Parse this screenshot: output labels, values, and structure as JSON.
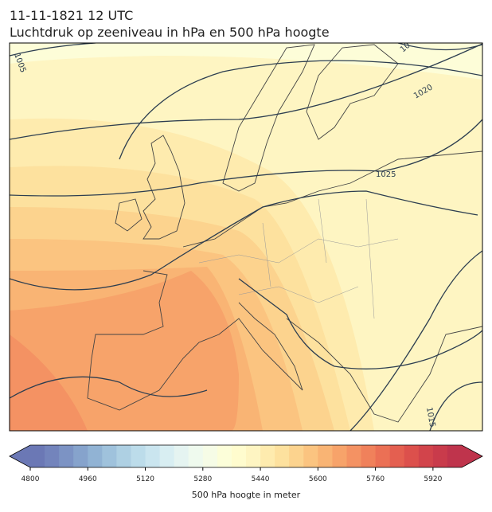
{
  "header": {
    "title": "11-11-1821 12 UTC",
    "subtitle": "Luchtdruk op zeeniveau in hPa en 500 hPa hoogte"
  },
  "map": {
    "isobar_labels": [
      "1005",
      "10",
      "1020",
      "1025",
      "1015"
    ]
  },
  "colorbar": {
    "label": "500 hPa hoogte in meter",
    "lim": [
      4800,
      6000
    ],
    "ticks": [
      4800,
      4960,
      5120,
      5280,
      5440,
      5600,
      5760,
      5920
    ],
    "colors": [
      "#6b78b5",
      "#7384bc",
      "#7c93c4",
      "#86a3cc",
      "#91b3d4",
      "#9fc2dc",
      "#aed0e3",
      "#bcdcea",
      "#cae5ef",
      "#d8eef2",
      "#e5f4f1",
      "#effaee",
      "#f6fce6",
      "#fcfed9",
      "#fffcce",
      "#fef5c2",
      "#feebae",
      "#fde19e",
      "#fcd38e",
      "#fbc480",
      "#f9b474",
      "#f7a36a",
      "#f49263",
      "#f0815b",
      "#eb7055",
      "#e45f50",
      "#dc504c",
      "#d2444b",
      "#c93b4b",
      "#bf344c"
    ]
  }
}
